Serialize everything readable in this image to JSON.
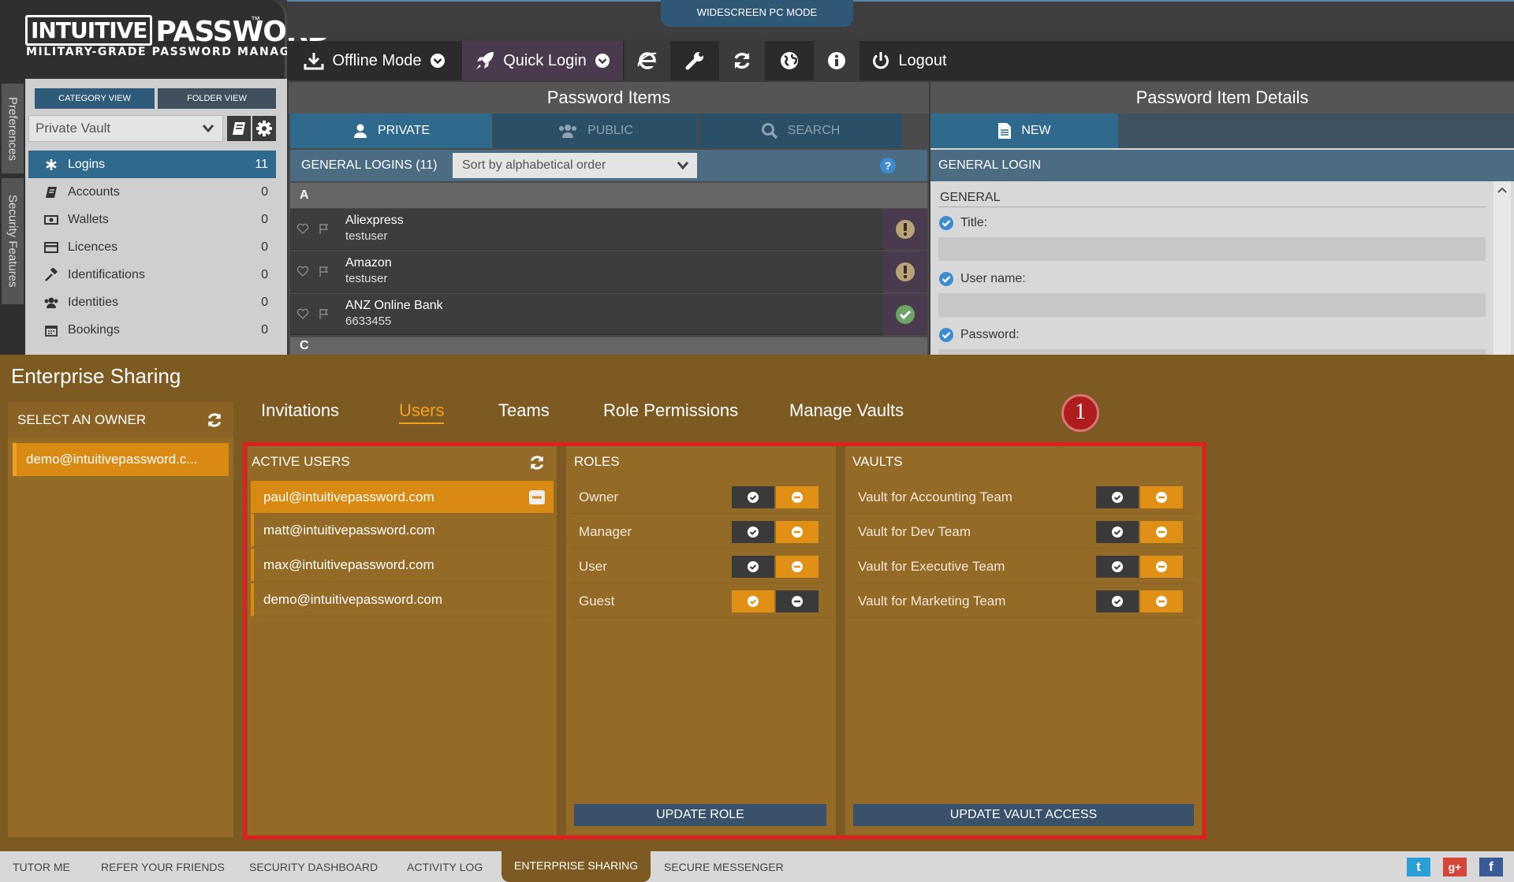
{
  "logo": {
    "line1_box": "INTUITIVE",
    "line1": "PASSWORD",
    "tm": "™",
    "subtitle": "MILITARY-GRADE PASSWORD MANAGER"
  },
  "mode_tab": "WIDESCREEN PC MODE",
  "toolbar": {
    "offline": "Offline Mode",
    "quick_login": "Quick Login",
    "logout": "Logout"
  },
  "side_tabs": {
    "preferences": "Preferences",
    "security": "Security Features"
  },
  "sidebar": {
    "category_view": "CATEGORY VIEW",
    "folder_view": "FOLDER VIEW",
    "vault": "Private Vault",
    "categories": [
      {
        "label": "Logins",
        "count": "11",
        "icon": "asterisk-icon"
      },
      {
        "label": "Accounts",
        "count": "0",
        "icon": "book-icon"
      },
      {
        "label": "Wallets",
        "count": "0",
        "icon": "money-icon"
      },
      {
        "label": "Licences",
        "count": "0",
        "icon": "card-icon"
      },
      {
        "label": "Identifications",
        "count": "0",
        "icon": "gavel-icon"
      },
      {
        "label": "Identities",
        "count": "0",
        "icon": "users-icon"
      },
      {
        "label": "Bookings",
        "count": "0",
        "icon": "calendar-icon"
      }
    ]
  },
  "password_items": {
    "title": "Password Items",
    "tabs": {
      "private": "PRIVATE",
      "public": "PUBLIC",
      "search": "SEARCH"
    },
    "list_title": "GENERAL LOGINS (11)",
    "sort": "Sort by alphabetical order",
    "help": "?",
    "letters": [
      "A",
      "C"
    ],
    "rows": [
      {
        "name": "Aliexpress",
        "user": "testuser",
        "status": "warning"
      },
      {
        "name": "Amazon",
        "user": "testuser",
        "status": "warning"
      },
      {
        "name": "ANZ Online Bank",
        "user": "6633455",
        "status": "ok"
      }
    ]
  },
  "details": {
    "title": "Password Item Details",
    "new": "NEW",
    "bar": "GENERAL LOGIN",
    "section": "GENERAL",
    "fields": {
      "title": "Title:",
      "username": "User name:",
      "password": "Password:"
    }
  },
  "enterprise": {
    "title": "Enterprise Sharing",
    "select_owner": "SELECT AN OWNER",
    "owner": "demo@intuitivepassword.c...",
    "tabs": {
      "invitations": "Invitations",
      "users": "Users",
      "teams": "Teams",
      "roles": "Role Permissions",
      "vaults": "Manage Vaults"
    },
    "badge": "1",
    "active_users_title": "ACTIVE USERS",
    "users": [
      "paul@intuitivepassword.com",
      "matt@intuitivepassword.com",
      "max@intuitivepassword.com",
      "demo@intuitivepassword.com"
    ],
    "roles_title": "ROLES",
    "roles": [
      "Owner",
      "Manager",
      "User",
      "Guest"
    ],
    "vaults_title": "VAULTS",
    "vaults": [
      "Vault for Accounting Team",
      "Vault for Dev Team",
      "Vault for Executive Team",
      "Vault for Marketing Team"
    ],
    "update_role": "UPDATE ROLE",
    "update_vault": "UPDATE VAULT ACCESS"
  },
  "bottom_nav": {
    "tutor": "TUTOR ME",
    "refer": "REFER YOUR FRIENDS",
    "security": "SECURITY DASHBOARD",
    "activity": "ACTIVITY LOG",
    "enterprise": "ENTERPRISE SHARING",
    "messenger": "SECURE MESSENGER"
  },
  "social": {
    "twitter": "t",
    "gplus": "g+",
    "facebook": "f"
  },
  "colors": {
    "accent_blue": "#2f6a8d",
    "enterprise_bg": "#7d5a22",
    "orange": "#d98a12",
    "highlight_red": "#e01f1f"
  }
}
